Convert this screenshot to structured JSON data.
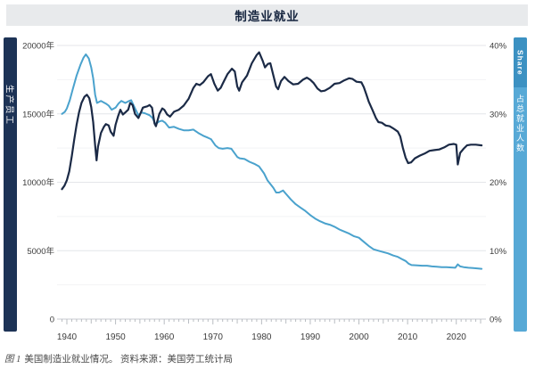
{
  "title": "制造业就业",
  "left_axis_bar": {
    "label": "生产员工",
    "color": "#1d3356"
  },
  "right_axis_bar": {
    "tab_label": "Share",
    "label": "占总就业人数",
    "color": "#57a9d6",
    "tab_color": "#3c91c2"
  },
  "caption": {
    "figure": "图 1",
    "text": "美国制造业就业情况。 资料来源：美国劳工统计局"
  },
  "colors": {
    "employment_line": "#1b2a46",
    "share_line": "#4aa2cd",
    "grid_major": "#e4e6e9",
    "grid_minor": "#f2f3f5",
    "axis_line": "#c8cbd0",
    "tick_mark": "#b9bdc2",
    "tick_text": "#3c3c3c",
    "title_bg": "#e8eaec"
  },
  "chart_data": {
    "type": "line",
    "title": "制造业就业",
    "x_axis": {
      "tick_labels": [
        1940,
        1950,
        1960,
        1970,
        1980,
        1990,
        2000,
        2010,
        2020
      ],
      "minor_tick_every_years": 1,
      "range": [
        1939,
        2025.5
      ]
    },
    "y_axis_left": {
      "label": "生产员工",
      "tick_labels": [
        "20000年",
        "15000年",
        "10000年",
        "5000年",
        "0"
      ],
      "tick_values": [
        20000,
        15000,
        10000,
        5000,
        0
      ],
      "range": [
        0,
        20000
      ],
      "unit": "thousands of employees"
    },
    "y_axis_right": {
      "label": "占总就业人数 (Share)",
      "tick_labels": [
        "40%",
        "30%",
        "20%",
        "10%",
        "0%"
      ],
      "tick_values": [
        40,
        30,
        20,
        10,
        0
      ],
      "range": [
        0,
        40
      ],
      "unit": "percent"
    },
    "grid": {
      "major": true,
      "minor_step_left": 2500,
      "minor_step_right": 5,
      "legend_position": "side-bars"
    },
    "series": [
      {
        "name": "生产员工",
        "axis": "left",
        "color": "#1b2a46",
        "points": [
          [
            1939,
            9500
          ],
          [
            1939.5,
            9750
          ],
          [
            1940,
            10150
          ],
          [
            1940.5,
            10800
          ],
          [
            1941,
            11900
          ],
          [
            1941.5,
            13100
          ],
          [
            1942,
            14200
          ],
          [
            1942.5,
            15100
          ],
          [
            1943,
            15800
          ],
          [
            1943.6,
            16250
          ],
          [
            1944.1,
            16400
          ],
          [
            1944.6,
            16150
          ],
          [
            1945,
            15500
          ],
          [
            1945.4,
            14400
          ],
          [
            1945.8,
            12700
          ],
          [
            1946.1,
            11600
          ],
          [
            1946.4,
            12600
          ],
          [
            1947,
            13600
          ],
          [
            1947.6,
            14050
          ],
          [
            1948,
            14250
          ],
          [
            1948.6,
            14150
          ],
          [
            1949,
            13700
          ],
          [
            1949.6,
            13400
          ],
          [
            1950,
            14200
          ],
          [
            1950.5,
            14800
          ],
          [
            1951,
            15300
          ],
          [
            1951.5,
            14950
          ],
          [
            1952,
            15100
          ],
          [
            1952.6,
            15300
          ],
          [
            1953,
            15800
          ],
          [
            1953.5,
            15650
          ],
          [
            1954,
            15000
          ],
          [
            1954.7,
            14700
          ],
          [
            1955.2,
            15100
          ],
          [
            1955.6,
            15450
          ],
          [
            1956,
            15500
          ],
          [
            1956.5,
            15550
          ],
          [
            1957,
            15650
          ],
          [
            1957.5,
            15450
          ],
          [
            1958,
            14300
          ],
          [
            1958.3,
            14100
          ],
          [
            1959,
            15000
          ],
          [
            1959.6,
            15400
          ],
          [
            1960,
            15300
          ],
          [
            1960.6,
            14950
          ],
          [
            1961.2,
            14800
          ],
          [
            1962,
            15150
          ],
          [
            1963,
            15300
          ],
          [
            1964,
            15600
          ],
          [
            1965,
            16100
          ],
          [
            1966,
            16900
          ],
          [
            1966.6,
            17200
          ],
          [
            1967.3,
            17100
          ],
          [
            1968,
            17300
          ],
          [
            1969,
            17750
          ],
          [
            1969.6,
            17900
          ],
          [
            1970.3,
            17200
          ],
          [
            1971,
            16700
          ],
          [
            1971.6,
            16900
          ],
          [
            1972,
            17200
          ],
          [
            1973,
            17900
          ],
          [
            1973.9,
            18300
          ],
          [
            1974.5,
            18100
          ],
          [
            1975,
            17000
          ],
          [
            1975.4,
            16700
          ],
          [
            1976,
            17300
          ],
          [
            1977,
            17800
          ],
          [
            1978,
            18700
          ],
          [
            1979,
            19300
          ],
          [
            1979.5,
            19500
          ],
          [
            1980.2,
            18900
          ],
          [
            1980.7,
            18400
          ],
          [
            1981.3,
            18650
          ],
          [
            1981.8,
            18700
          ],
          [
            1982.5,
            17700
          ],
          [
            1983,
            17000
          ],
          [
            1983.4,
            16800
          ],
          [
            1984,
            17400
          ],
          [
            1984.7,
            17700
          ],
          [
            1985.5,
            17400
          ],
          [
            1986.5,
            17150
          ],
          [
            1987.5,
            17200
          ],
          [
            1988.5,
            17500
          ],
          [
            1989.3,
            17650
          ],
          [
            1990,
            17500
          ],
          [
            1990.7,
            17250
          ],
          [
            1991.5,
            16850
          ],
          [
            1992.2,
            16650
          ],
          [
            1993,
            16700
          ],
          [
            1994,
            16900
          ],
          [
            1995,
            17200
          ],
          [
            1996,
            17250
          ],
          [
            1997,
            17450
          ],
          [
            1998,
            17600
          ],
          [
            1998.7,
            17550
          ],
          [
            1999.5,
            17350
          ],
          [
            2000.5,
            17300
          ],
          [
            2001,
            16950
          ],
          [
            2001.5,
            16450
          ],
          [
            2002,
            15900
          ],
          [
            2002.7,
            15350
          ],
          [
            2003.5,
            14700
          ],
          [
            2004,
            14400
          ],
          [
            2004.7,
            14350
          ],
          [
            2005.5,
            14150
          ],
          [
            2006.3,
            14100
          ],
          [
            2007,
            13950
          ],
          [
            2008,
            13700
          ],
          [
            2008.5,
            13350
          ],
          [
            2009,
            12550
          ],
          [
            2009.6,
            11800
          ],
          [
            2010.1,
            11400
          ],
          [
            2010.7,
            11450
          ],
          [
            2011.5,
            11750
          ],
          [
            2012.5,
            11950
          ],
          [
            2013.5,
            12100
          ],
          [
            2014.5,
            12300
          ],
          [
            2015.5,
            12350
          ],
          [
            2016.5,
            12400
          ],
          [
            2017.5,
            12550
          ],
          [
            2018.5,
            12750
          ],
          [
            2019.5,
            12800
          ],
          [
            2020,
            12750
          ],
          [
            2020.3,
            11300
          ],
          [
            2020.8,
            12150
          ],
          [
            2021.5,
            12450
          ],
          [
            2022.2,
            12700
          ],
          [
            2023,
            12750
          ],
          [
            2024,
            12750
          ],
          [
            2025.2,
            12700
          ]
        ]
      },
      {
        "name": "占总就业人数 (Share)",
        "axis": "right",
        "color": "#4aa2cd",
        "points": [
          [
            1939,
            30.0
          ],
          [
            1939.6,
            30.3
          ],
          [
            1940,
            30.8
          ],
          [
            1940.6,
            32.0
          ],
          [
            1941.2,
            33.6
          ],
          [
            1942,
            35.6
          ],
          [
            1942.8,
            37.2
          ],
          [
            1943.4,
            38.2
          ],
          [
            1943.9,
            38.7
          ],
          [
            1944.5,
            38.1
          ],
          [
            1945,
            36.8
          ],
          [
            1945.4,
            35.2
          ],
          [
            1945.8,
            32.8
          ],
          [
            1946.2,
            31.6
          ],
          [
            1947,
            31.9
          ],
          [
            1948,
            31.5
          ],
          [
            1948.6,
            31.2
          ],
          [
            1949.2,
            30.6
          ],
          [
            1950,
            30.9
          ],
          [
            1950.6,
            31.5
          ],
          [
            1951.2,
            31.9
          ],
          [
            1952,
            31.6
          ],
          [
            1952.8,
            31.9
          ],
          [
            1953.2,
            32.0
          ],
          [
            1954,
            30.8
          ],
          [
            1954.7,
            29.8
          ],
          [
            1955.3,
            30.2
          ],
          [
            1956,
            30.1
          ],
          [
            1957,
            29.8
          ],
          [
            1957.6,
            29.4
          ],
          [
            1958.2,
            28.5
          ],
          [
            1959,
            28.9
          ],
          [
            1959.6,
            29.0
          ],
          [
            1960.2,
            28.7
          ],
          [
            1961,
            28.0
          ],
          [
            1962,
            28.1
          ],
          [
            1963,
            27.8
          ],
          [
            1964,
            27.6
          ],
          [
            1965,
            27.6
          ],
          [
            1966,
            27.7
          ],
          [
            1967,
            27.2
          ],
          [
            1968,
            26.8
          ],
          [
            1969,
            26.5
          ],
          [
            1969.6,
            26.3
          ],
          [
            1970.5,
            25.4
          ],
          [
            1971.2,
            25.0
          ],
          [
            1972,
            24.9
          ],
          [
            1973,
            25.0
          ],
          [
            1973.8,
            24.9
          ],
          [
            1975,
            23.7
          ],
          [
            1975.5,
            23.5
          ],
          [
            1976.5,
            23.4
          ],
          [
            1977.5,
            23.0
          ],
          [
            1978.5,
            22.7
          ],
          [
            1979.5,
            22.3
          ],
          [
            1980.5,
            21.3
          ],
          [
            1981.2,
            20.3
          ],
          [
            1982.4,
            19.2
          ],
          [
            1983,
            18.5
          ],
          [
            1983.6,
            18.5
          ],
          [
            1984.4,
            18.8
          ],
          [
            1985,
            18.3
          ],
          [
            1986,
            17.5
          ],
          [
            1987,
            16.8
          ],
          [
            1988,
            16.3
          ],
          [
            1989,
            15.8
          ],
          [
            1990,
            15.2
          ],
          [
            1991,
            14.7
          ],
          [
            1992,
            14.3
          ],
          [
            1993,
            14.0
          ],
          [
            1994,
            13.8
          ],
          [
            1995,
            13.5
          ],
          [
            1996,
            13.1
          ],
          [
            1997,
            12.8
          ],
          [
            1998,
            12.5
          ],
          [
            1999,
            12.1
          ],
          [
            2000,
            11.9
          ],
          [
            2001,
            11.3
          ],
          [
            2002,
            10.7
          ],
          [
            2003,
            10.2
          ],
          [
            2004,
            10.0
          ],
          [
            2005,
            9.8
          ],
          [
            2006,
            9.6
          ],
          [
            2007,
            9.3
          ],
          [
            2008,
            9.1
          ],
          [
            2009,
            8.7
          ],
          [
            2009.6,
            8.5
          ],
          [
            2010.2,
            8.1
          ],
          [
            2010.8,
            7.9
          ],
          [
            2012,
            7.85
          ],
          [
            2013,
            7.8
          ],
          [
            2014,
            7.8
          ],
          [
            2015,
            7.7
          ],
          [
            2016,
            7.65
          ],
          [
            2017,
            7.6
          ],
          [
            2018,
            7.6
          ],
          [
            2019,
            7.55
          ],
          [
            2019.8,
            7.5
          ],
          [
            2020.3,
            8.0
          ],
          [
            2020.8,
            7.7
          ],
          [
            2021.5,
            7.6
          ],
          [
            2022.5,
            7.5
          ],
          [
            2023.5,
            7.45
          ],
          [
            2024.5,
            7.4
          ],
          [
            2025.2,
            7.35
          ]
        ]
      }
    ]
  }
}
